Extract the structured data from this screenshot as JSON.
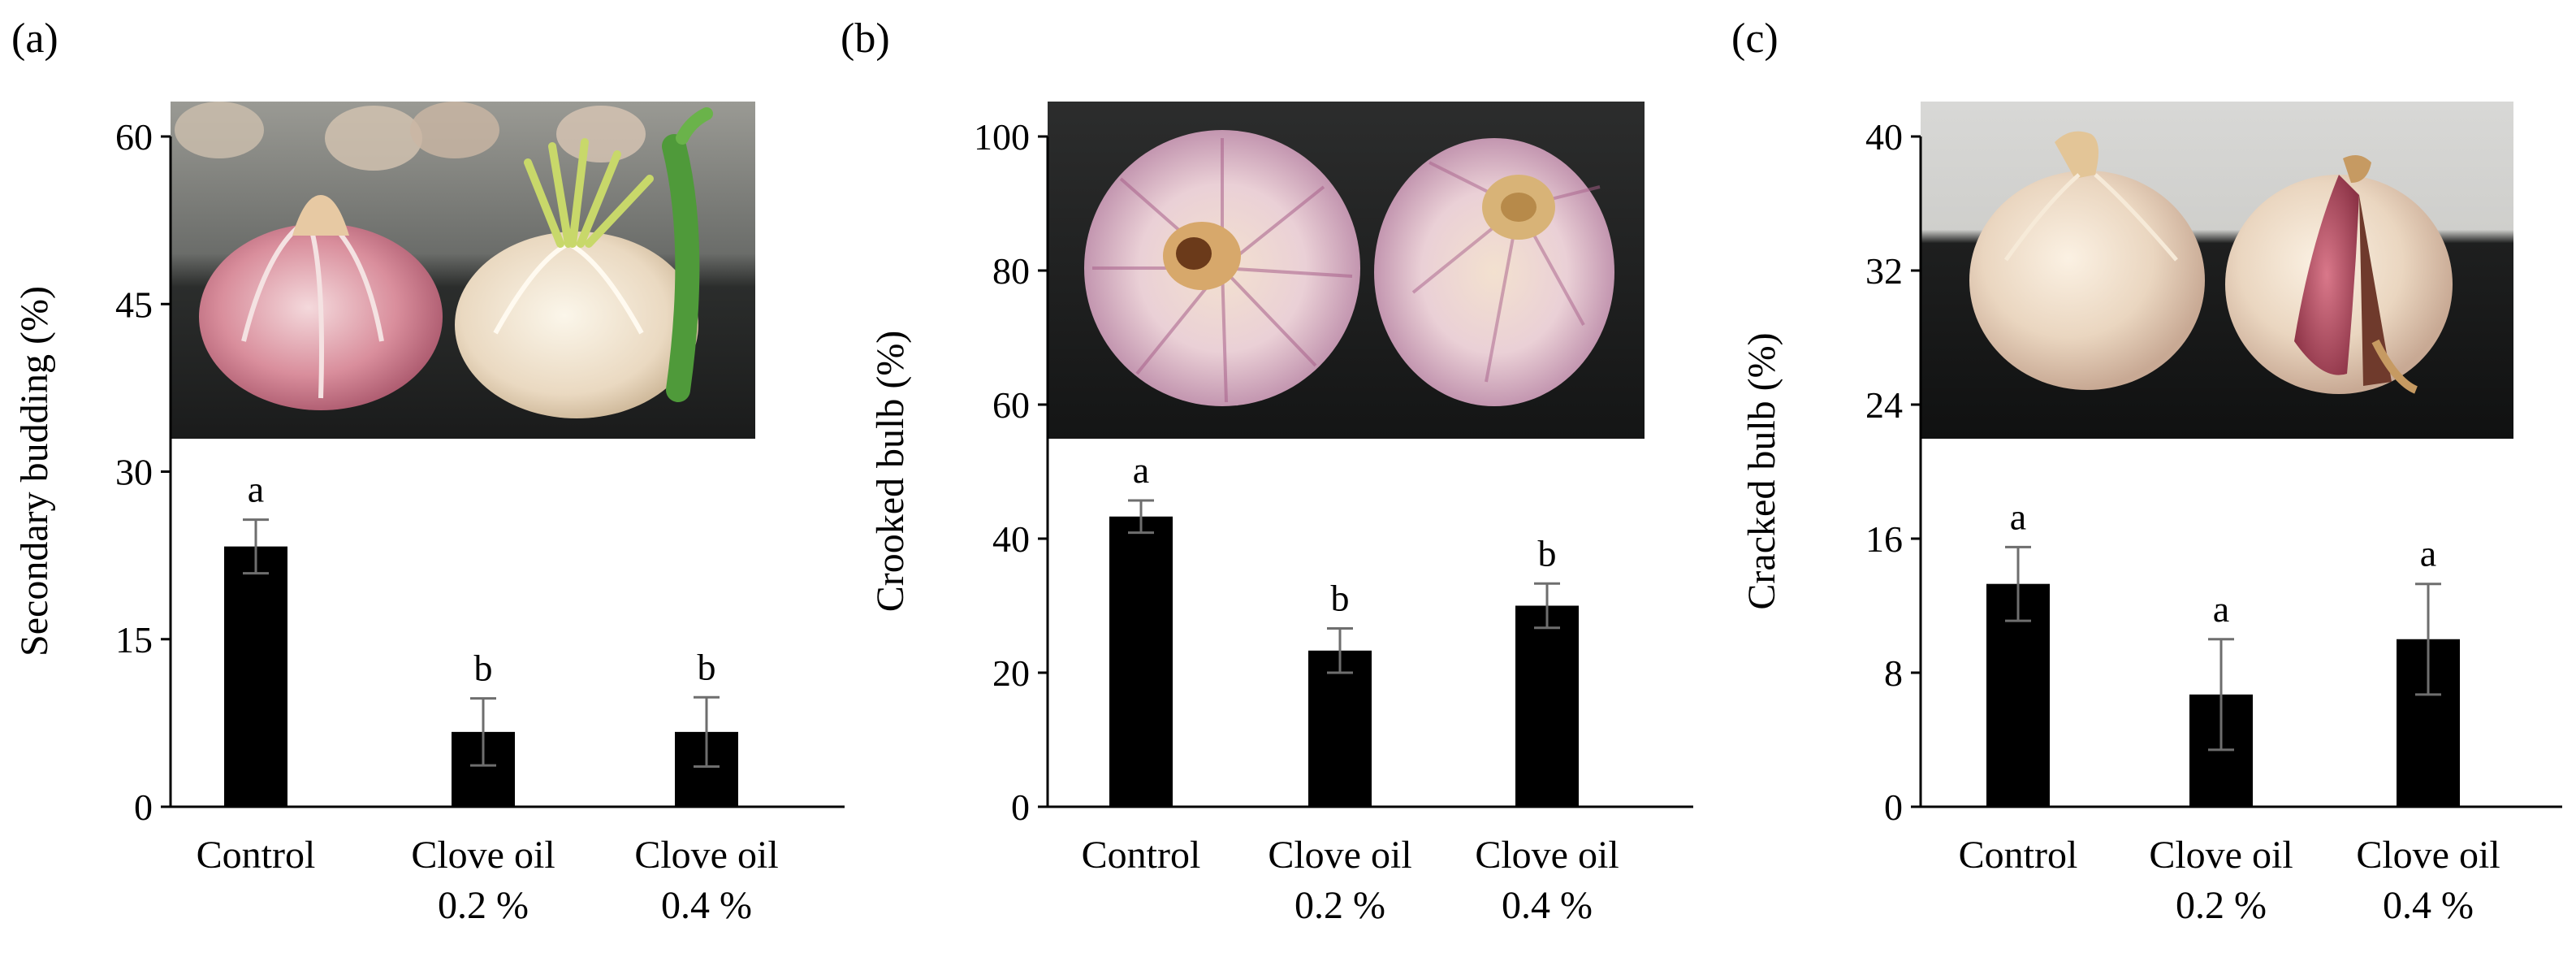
{
  "chart_data": [
    {
      "type": "bar",
      "panel_label": "(a)",
      "ylabel": "Secondary budding (%)",
      "ylim": [
        0,
        60
      ],
      "yticks": [
        0,
        15,
        30,
        45,
        60
      ],
      "categories": [
        [
          "Control"
        ],
        [
          "Clove oil",
          "0.2 %"
        ],
        [
          "Clove oil",
          "0.4 %"
        ]
      ],
      "values": [
        23.3,
        6.7,
        6.7
      ],
      "errors": [
        2.4,
        3.0,
        3.1
      ],
      "significance": [
        "a",
        "b",
        "b"
      ],
      "bar_color": "#000000",
      "inset_photo": "garlic bulbs: control (left) vs secondary budding with green sprouts (right)"
    },
    {
      "type": "bar",
      "panel_label": "(b)",
      "ylabel": "Crooked bulb  (%)",
      "ylim": [
        0,
        100
      ],
      "yticks": [
        0,
        20,
        40,
        60,
        80,
        100
      ],
      "categories": [
        [
          "Control"
        ],
        [
          "Clove oil",
          "0.2 %"
        ],
        [
          "Clove oil",
          "0.4 %"
        ]
      ],
      "values": [
        43.3,
        23.3,
        30.0
      ],
      "errors": [
        2.4,
        3.3,
        3.3
      ],
      "significance": [
        "a",
        "b",
        "b"
      ],
      "bar_color": "#000000",
      "inset_photo": "garlic bulbs viewed from the base: normal vs crooked bulb"
    },
    {
      "type": "bar",
      "panel_label": "(c)",
      "ylabel": "Cracked bulb  (%)",
      "ylim": [
        0,
        40
      ],
      "yticks": [
        0,
        8,
        16,
        24,
        32,
        40
      ],
      "categories": [
        [
          "Control"
        ],
        [
          "Clove oil",
          "0.2 %"
        ],
        [
          "Clove oil",
          "0.4 %"
        ]
      ],
      "values": [
        13.3,
        6.7,
        10.0
      ],
      "errors": [
        2.2,
        3.3,
        3.3
      ],
      "significance": [
        "a",
        "a",
        "a"
      ],
      "bar_color": "#000000",
      "inset_photo": "garlic bulbs: intact bulb vs cracked bulb"
    }
  ]
}
